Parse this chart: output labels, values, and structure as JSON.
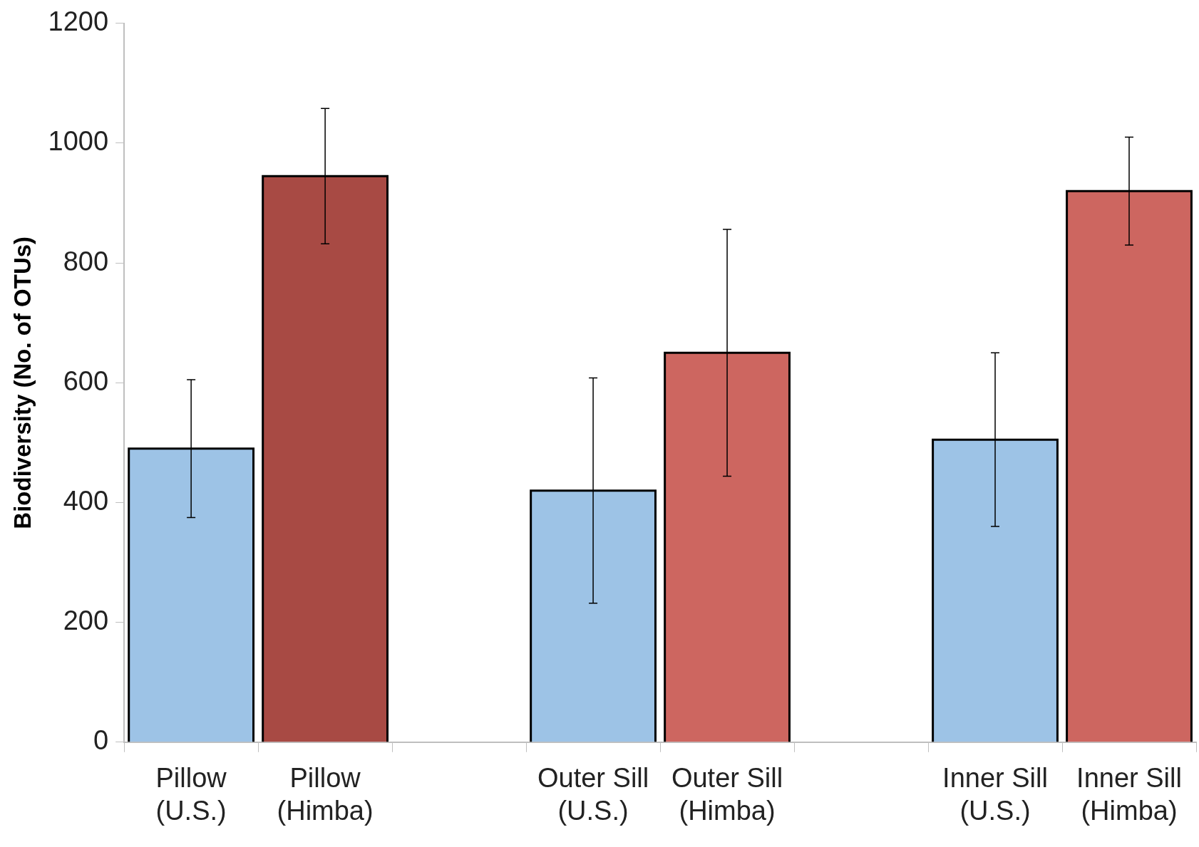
{
  "chart_data": {
    "type": "bar",
    "ylabel": "Biodiversity (No. of OTUs)",
    "categories": [
      "Pillow\n(U.S.)",
      "Pillow\n(Himba)",
      null,
      "Outer Sill\n(U.S.)",
      "Outer Sill\n(Himba)",
      null,
      "Inner Sill\n(U.S.)",
      "Inner Sill\n(Himba)"
    ],
    "values": [
      490,
      945,
      null,
      420,
      650,
      null,
      505,
      920
    ],
    "colors": [
      "#9dc3e6",
      "#a84a44",
      null,
      "#9dc3e6",
      "#cd6660",
      null,
      "#9dc3e6",
      "#cd6660"
    ],
    "errors": [
      115,
      113,
      null,
      188,
      206,
      null,
      145,
      90
    ],
    "ylim": [
      0,
      1200
    ],
    "yticks": [
      0,
      200,
      400,
      600,
      800,
      1000,
      1200
    ],
    "grid": false,
    "legend": false
  }
}
